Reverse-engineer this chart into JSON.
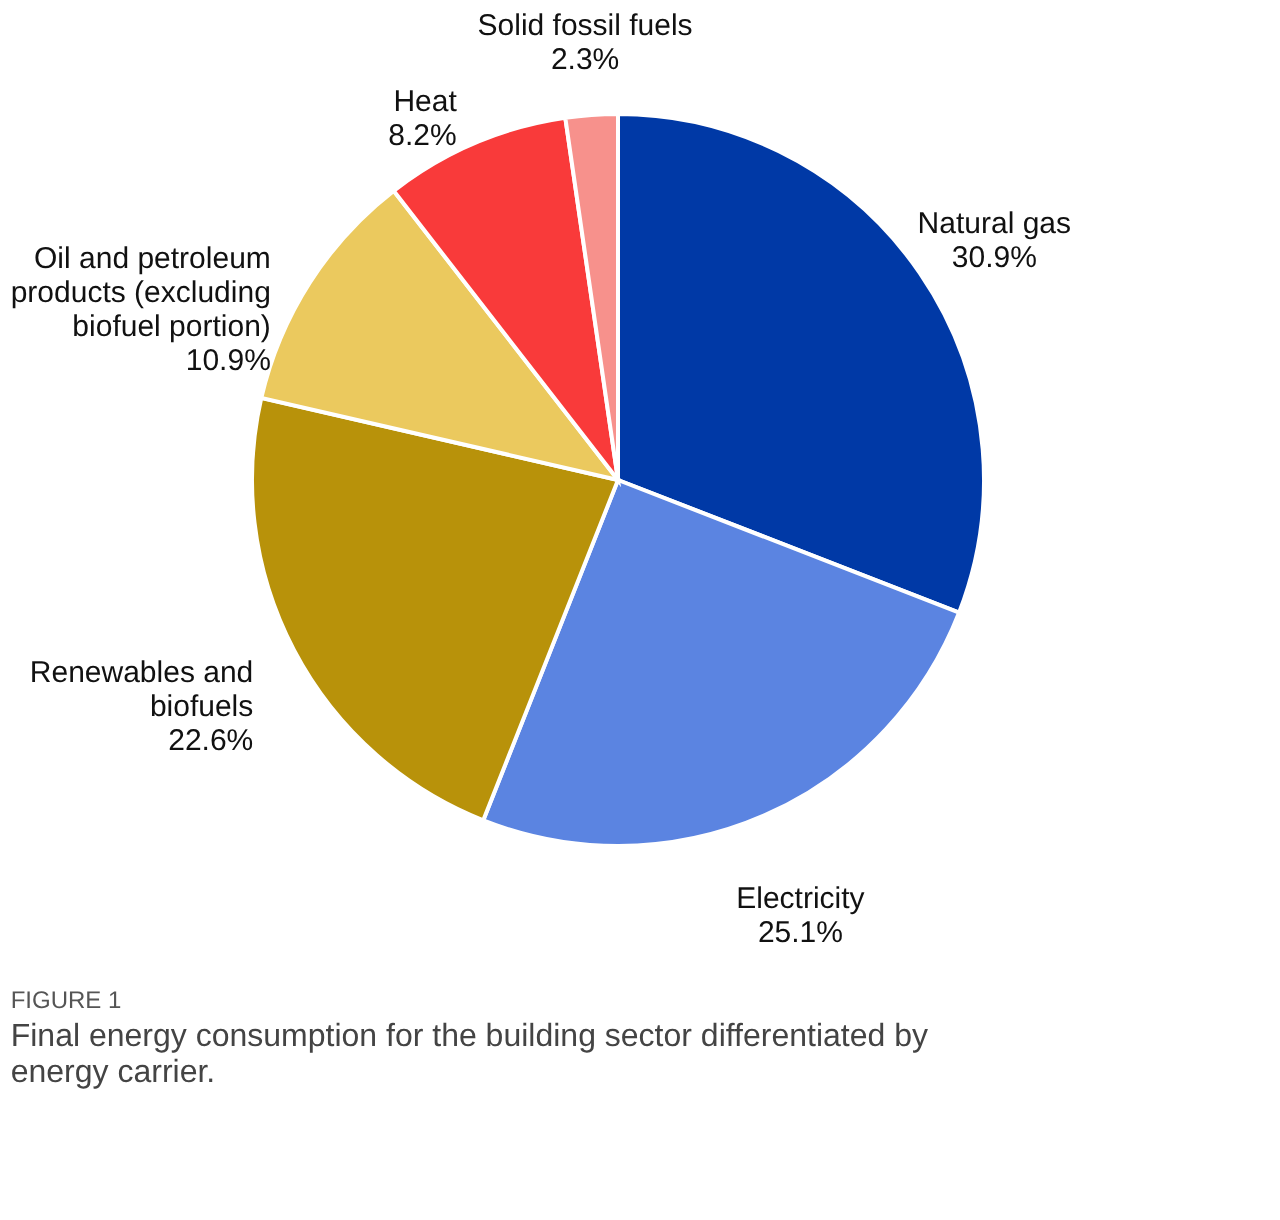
{
  "chart_data": {
    "type": "pie",
    "categories": [
      "Natural gas",
      "Electricity",
      "Renewables  and\nbiofuels",
      "Oil and petroleum\nproducts (excluding\nbiofuel portion)",
      "Heat",
      "Solid fossil fuels"
    ],
    "values": [
      30.9,
      25.1,
      22.6,
      10.9,
      8.2,
      2.3
    ],
    "value_labels": [
      "30.9%",
      "25.1%",
      "22.6%",
      "10.9%",
      "8.2%",
      "2.3%"
    ],
    "colors": [
      "#0039a6",
      "#5b84e1",
      "#b8920a",
      "#ebc95e",
      "#f93a3a",
      "#f7918c"
    ],
    "annotations": [
      "FIGURE 1",
      "Final energy consumption for the building sector differentiated by\nenergy carrier."
    ],
    "legend": false
  }
}
